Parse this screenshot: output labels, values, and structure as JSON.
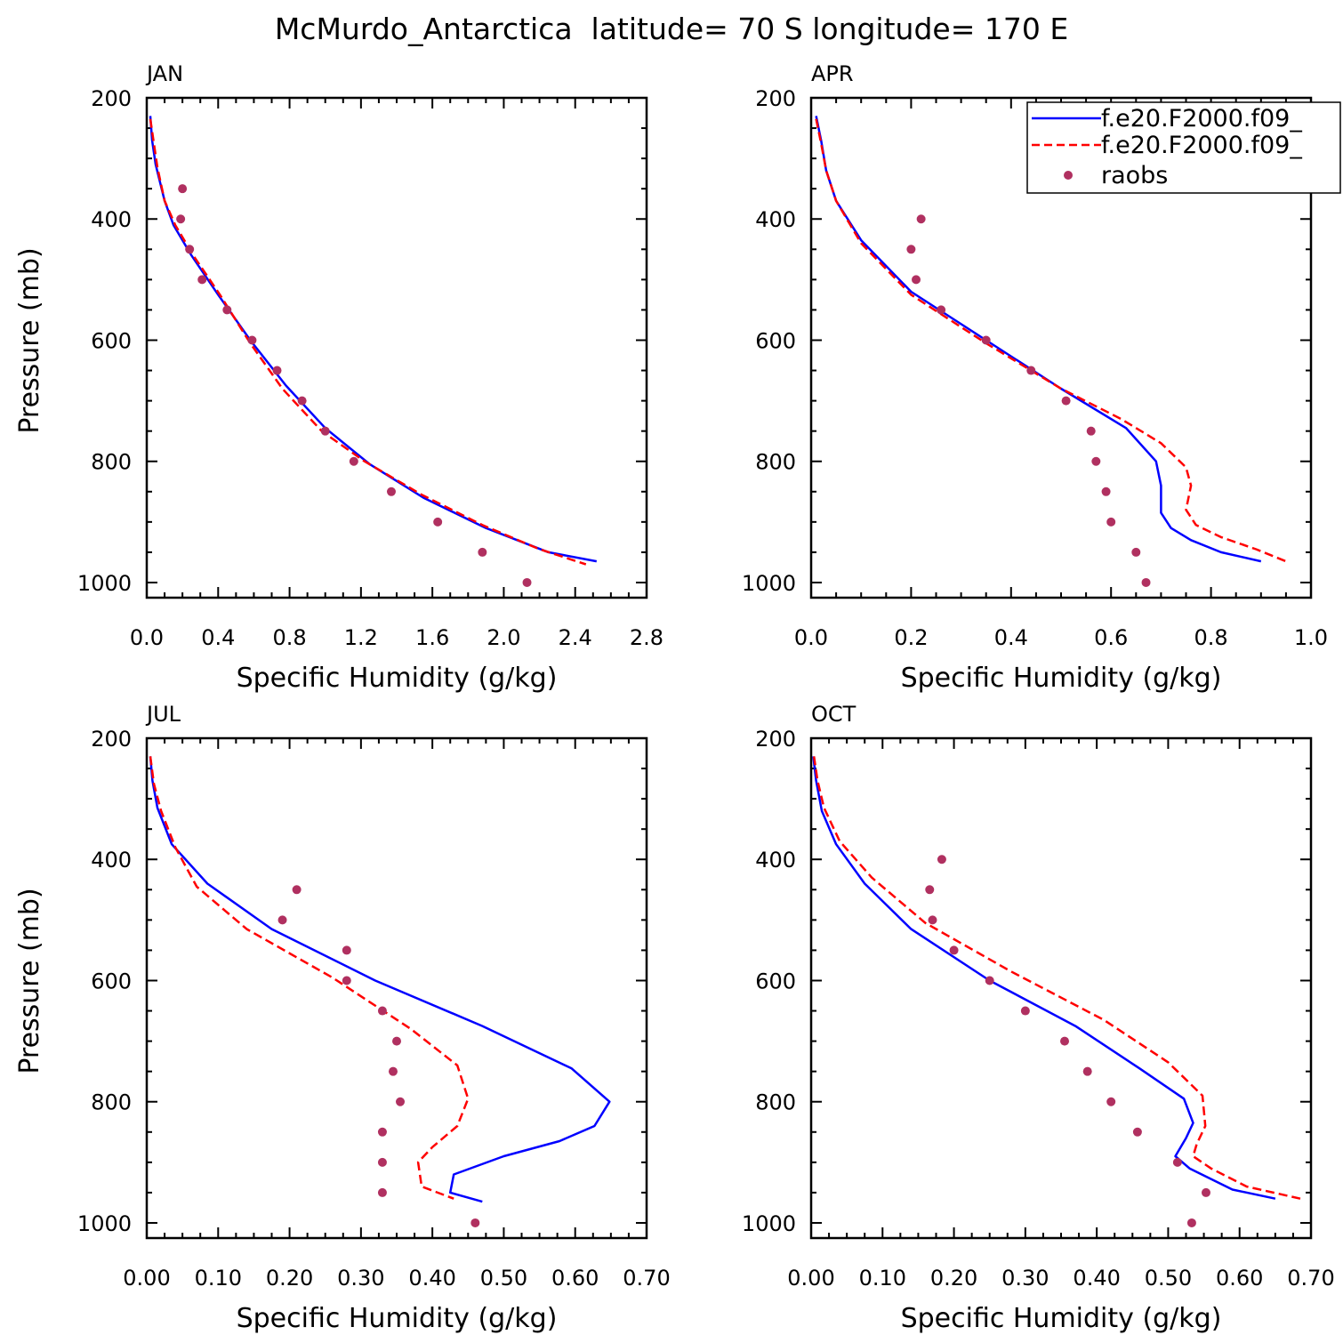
{
  "figure": {
    "title": "McMurdo_Antarctica  latitude= 70 S longitude= 170 E",
    "legend": {
      "placement": "top-right of APR panel",
      "entries": [
        {
          "label": "f.e20.F2000.f09_",
          "color": "#0000ff",
          "style": "solid"
        },
        {
          "label": "f.e20.F2000.f09_",
          "color": "#ff0000",
          "style": "dashed"
        },
        {
          "label": "raobs",
          "color": "#b03060",
          "style": "marker"
        }
      ]
    }
  },
  "chart_data": [
    {
      "type": "line",
      "title": "JAN",
      "xlabel": "Specific Humidity (g/kg)",
      "ylabel": "Pressure (mb)",
      "xlim": [
        0,
        2.8
      ],
      "ylim": [
        200,
        1025
      ],
      "y_inverted": true,
      "xticks": [
        0,
        0.4,
        0.8,
        1.2,
        1.6,
        2.0,
        2.4,
        2.8
      ],
      "xtick_labels": [
        "0.0",
        "0.4",
        "0.8",
        "1.2",
        "1.6",
        "2.0",
        "2.4",
        "2.8"
      ],
      "yticks": [
        200,
        400,
        600,
        800,
        1000
      ],
      "ytick_labels": [
        "200",
        "400",
        "600",
        "800",
        "1000"
      ],
      "series": [
        {
          "color": "#0000ff",
          "style": "solid",
          "x": [
            0.02,
            0.03,
            0.05,
            0.1,
            0.15,
            0.25,
            0.4,
            0.58,
            0.78,
            1.0,
            1.25,
            1.55,
            1.9,
            2.25,
            2.52
          ],
          "y": [
            230,
            270,
            310,
            370,
            410,
            460,
            525,
            600,
            675,
            745,
            805,
            860,
            910,
            950,
            965
          ]
        },
        {
          "color": "#ff0000",
          "style": "dashed",
          "x": [
            0.02,
            0.04,
            0.06,
            0.1,
            0.16,
            0.26,
            0.41,
            0.58,
            0.76,
            0.98,
            1.22,
            1.54,
            1.88,
            2.2,
            2.46
          ],
          "y": [
            235,
            275,
            315,
            370,
            410,
            460,
            525,
            605,
            680,
            750,
            800,
            855,
            905,
            945,
            970
          ]
        },
        {
          "color": "#b03060",
          "style": "marker",
          "x": [
            0.2,
            0.19,
            0.24,
            0.31,
            0.45,
            0.59,
            0.73,
            0.87,
            1.0,
            1.16,
            1.37,
            1.63,
            1.88,
            2.13
          ],
          "y": [
            350,
            400,
            450,
            500,
            550,
            600,
            650,
            700,
            750,
            800,
            850,
            900,
            950,
            1000
          ]
        }
      ]
    },
    {
      "type": "line",
      "title": "APR",
      "xlabel": "Specific Humidity (g/kg)",
      "ylabel": "Pressure (mb)",
      "xlim": [
        0,
        1.0
      ],
      "ylim": [
        200,
        1025
      ],
      "y_inverted": true,
      "xticks": [
        0,
        0.2,
        0.4,
        0.6,
        0.8,
        1.0
      ],
      "xtick_labels": [
        "0.0",
        "0.2",
        "0.4",
        "0.6",
        "0.8",
        "1.0"
      ],
      "yticks": [
        200,
        400,
        600,
        800,
        1000
      ],
      "ytick_labels": [
        "200",
        "400",
        "600",
        "800",
        "1000"
      ],
      "series": [
        {
          "color": "#0000ff",
          "style": "solid",
          "x": [
            0.01,
            0.02,
            0.03,
            0.05,
            0.1,
            0.2,
            0.35,
            0.5,
            0.63,
            0.69,
            0.7,
            0.7,
            0.72,
            0.76,
            0.82,
            0.9
          ],
          "y": [
            230,
            270,
            320,
            370,
            435,
            520,
            600,
            680,
            745,
            800,
            840,
            885,
            910,
            930,
            950,
            965
          ]
        },
        {
          "color": "#ff0000",
          "style": "dashed",
          "x": [
            0.01,
            0.02,
            0.03,
            0.05,
            0.1,
            0.2,
            0.35,
            0.5,
            0.62,
            0.7,
            0.75,
            0.76,
            0.75,
            0.77,
            0.82,
            0.89,
            0.95
          ],
          "y": [
            235,
            275,
            320,
            370,
            440,
            525,
            605,
            680,
            730,
            770,
            810,
            840,
            880,
            905,
            925,
            945,
            965
          ]
        },
        {
          "color": "#b03060",
          "style": "marker",
          "x": [
            0.22,
            0.2,
            0.21,
            0.26,
            0.35,
            0.44,
            0.51,
            0.56,
            0.57,
            0.59,
            0.6,
            0.65,
            0.67
          ],
          "y": [
            400,
            450,
            500,
            550,
            600,
            650,
            700,
            750,
            800,
            850,
            900,
            950,
            1000
          ]
        }
      ]
    },
    {
      "type": "line",
      "title": "JUL",
      "xlabel": "Specific Humidity (g/kg)",
      "ylabel": "Pressure (mb)",
      "xlim": [
        0,
        0.7
      ],
      "ylim": [
        200,
        1025
      ],
      "y_inverted": true,
      "xticks": [
        0,
        0.1,
        0.2,
        0.3,
        0.4,
        0.5,
        0.6,
        0.7
      ],
      "xtick_labels": [
        "0.00",
        "0.10",
        "0.20",
        "0.30",
        "0.40",
        "0.50",
        "0.60",
        "0.70"
      ],
      "yticks": [
        200,
        400,
        600,
        800,
        1000
      ],
      "ytick_labels": [
        "200",
        "400",
        "600",
        "800",
        "1000"
      ],
      "series": [
        {
          "color": "#0000ff",
          "style": "solid",
          "x": [
            0.005,
            0.008,
            0.015,
            0.035,
            0.085,
            0.175,
            0.32,
            0.47,
            0.595,
            0.648,
            0.627,
            0.578,
            0.5,
            0.43,
            0.425,
            0.47
          ],
          "y": [
            230,
            270,
            315,
            375,
            440,
            515,
            600,
            675,
            745,
            800,
            840,
            865,
            890,
            920,
            950,
            965
          ]
        },
        {
          "color": "#ff0000",
          "style": "dashed",
          "x": [
            0.005,
            0.01,
            0.02,
            0.04,
            0.07,
            0.14,
            0.26,
            0.37,
            0.435,
            0.45,
            0.435,
            0.4,
            0.38,
            0.385,
            0.43
          ],
          "y": [
            230,
            275,
            320,
            380,
            445,
            515,
            595,
            680,
            740,
            795,
            840,
            875,
            900,
            940,
            960
          ]
        },
        {
          "color": "#b03060",
          "style": "marker",
          "x": [
            0.21,
            0.19,
            0.28,
            0.28,
            0.33,
            0.35,
            0.345,
            0.355,
            0.33,
            0.33,
            0.33,
            0.46
          ],
          "y": [
            450,
            500,
            550,
            600,
            650,
            700,
            750,
            800,
            850,
            900,
            950,
            1000
          ]
        }
      ]
    },
    {
      "type": "line",
      "title": "OCT",
      "xlabel": "Specific Humidity (g/kg)",
      "ylabel": "Pressure (mb)",
      "xlim": [
        0,
        0.7
      ],
      "ylim": [
        200,
        1025
      ],
      "y_inverted": true,
      "xticks": [
        0,
        0.1,
        0.2,
        0.3,
        0.4,
        0.5,
        0.6,
        0.7
      ],
      "xtick_labels": [
        "0.00",
        "0.10",
        "0.20",
        "0.30",
        "0.40",
        "0.50",
        "0.60",
        "0.70"
      ],
      "yticks": [
        200,
        400,
        600,
        800,
        1000
      ],
      "ytick_labels": [
        "200",
        "400",
        "600",
        "800",
        "1000"
      ],
      "series": [
        {
          "color": "#0000ff",
          "style": "solid",
          "x": [
            0.003,
            0.007,
            0.015,
            0.035,
            0.075,
            0.14,
            0.25,
            0.37,
            0.46,
            0.522,
            0.535,
            0.525,
            0.51,
            0.53,
            0.59,
            0.65
          ],
          "y": [
            230,
            270,
            320,
            375,
            440,
            515,
            600,
            675,
            745,
            795,
            835,
            860,
            890,
            910,
            945,
            960
          ]
        },
        {
          "color": "#ff0000",
          "style": "dashed",
          "x": [
            0.004,
            0.009,
            0.018,
            0.04,
            0.085,
            0.16,
            0.28,
            0.41,
            0.5,
            0.548,
            0.552,
            0.54,
            0.535,
            0.56,
            0.61,
            0.685
          ],
          "y": [
            230,
            270,
            315,
            370,
            430,
            505,
            585,
            665,
            735,
            790,
            840,
            870,
            890,
            910,
            940,
            960
          ]
        },
        {
          "color": "#b03060",
          "style": "marker",
          "x": [
            0.183,
            0.166,
            0.17,
            0.2,
            0.25,
            0.3,
            0.355,
            0.387,
            0.42,
            0.457,
            0.513,
            0.553,
            0.533
          ],
          "y": [
            400,
            450,
            500,
            550,
            600,
            650,
            700,
            750,
            800,
            850,
            900,
            950,
            1000
          ]
        }
      ]
    }
  ]
}
